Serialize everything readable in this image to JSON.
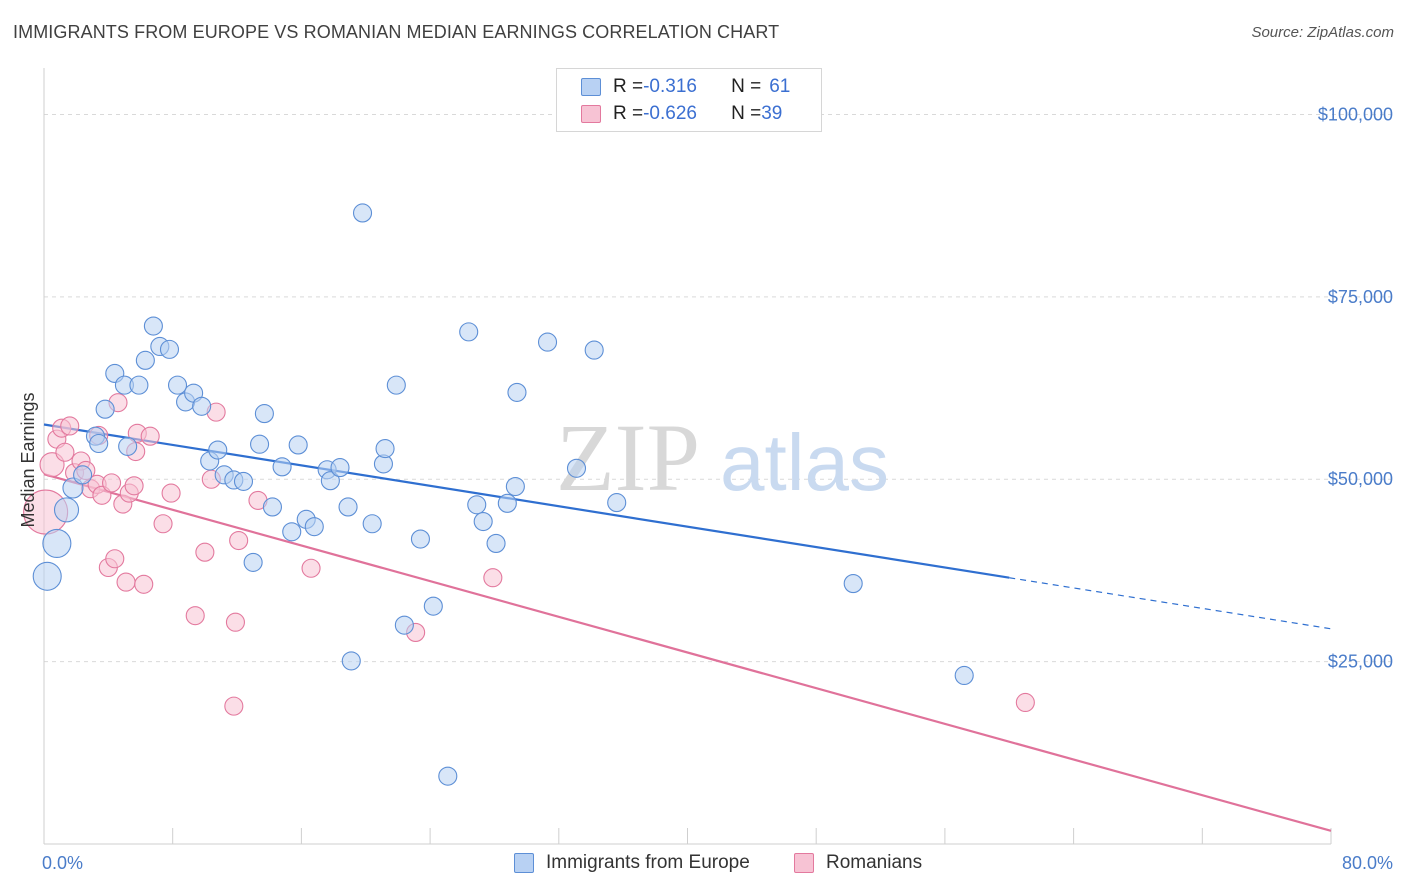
{
  "title": "IMMIGRANTS FROM EUROPE VS ROMANIAN MEDIAN EARNINGS CORRELATION CHART",
  "source": "Source: ZipAtlas.com",
  "watermark": {
    "zip": "ZIP",
    "atlas": "atlas"
  },
  "legend": {
    "rows": [
      {
        "r_label": "R = ",
        "r_value": "-0.316",
        "n_label": "N = ",
        "n_value": "61"
      },
      {
        "r_label": "R = ",
        "r_value": "-0.626",
        "n_label": "N = ",
        "n_value": "39"
      }
    ]
  },
  "bottom_legend": [
    "Immigrants from Europe",
    "Romanians"
  ],
  "colors": {
    "blue_fill": "#b8d1f3",
    "blue_stroke": "#5d8fd6",
    "blue_line": "#2f6fd0",
    "pink_fill": "#f7c3d4",
    "pink_stroke": "#e3799e",
    "pink_line": "#e0729a",
    "grid": "#d9d9d9",
    "axis_text": "#4a7cc9"
  },
  "chart_data": {
    "type": "scatter",
    "xlabel": "",
    "ylabel": "Median Earnings",
    "xlim": [
      0,
      80
    ],
    "ylim": [
      0,
      105000
    ],
    "x_tick_labels": [
      "0.0%",
      "80.0%"
    ],
    "y_ticks": [
      25000,
      50000,
      75000,
      100000
    ],
    "y_tick_labels": [
      "$25,000",
      "$50,000",
      "$75,000",
      "$100,000"
    ],
    "grid": true,
    "series": [
      {
        "name": "Immigrants from Europe",
        "r": -0.316,
        "n": 61,
        "trend": {
          "x0": 0,
          "y0": 57500,
          "x1": 60,
          "y1": 36500,
          "dashed_to_x": 80,
          "dashed_to_y": 29500
        },
        "points": [
          [
            0.2,
            36700,
            14
          ],
          [
            0.8,
            41200,
            14
          ],
          [
            1.4,
            45800,
            12
          ],
          [
            1.8,
            48800,
            10
          ],
          [
            2.4,
            50600,
            9
          ],
          [
            3.2,
            55900,
            9
          ],
          [
            3.4,
            54900,
            9
          ],
          [
            3.8,
            59600,
            9
          ],
          [
            4.4,
            64500,
            9
          ],
          [
            5.0,
            62900,
            9
          ],
          [
            5.2,
            54500,
            9
          ],
          [
            5.9,
            62900,
            9
          ],
          [
            6.3,
            66300,
            9
          ],
          [
            6.8,
            71000,
            9
          ],
          [
            7.2,
            68200,
            9
          ],
          [
            7.8,
            67800,
            9
          ],
          [
            8.3,
            62900,
            9
          ],
          [
            8.8,
            60600,
            9
          ],
          [
            9.3,
            61800,
            9
          ],
          [
            9.8,
            60000,
            9
          ],
          [
            10.3,
            52500,
            9
          ],
          [
            10.8,
            54000,
            9
          ],
          [
            11.2,
            50600,
            9
          ],
          [
            11.8,
            49900,
            9
          ],
          [
            12.4,
            49700,
            9
          ],
          [
            13.0,
            38600,
            9
          ],
          [
            13.4,
            54800,
            9
          ],
          [
            13.7,
            59000,
            9
          ],
          [
            14.2,
            46200,
            9
          ],
          [
            14.8,
            51700,
            9
          ],
          [
            15.4,
            42800,
            9
          ],
          [
            15.8,
            54700,
            9
          ],
          [
            16.3,
            44500,
            9
          ],
          [
            16.8,
            43500,
            9
          ],
          [
            17.6,
            51300,
            9
          ],
          [
            17.8,
            49800,
            9
          ],
          [
            18.4,
            51600,
            9
          ],
          [
            18.9,
            46200,
            9
          ],
          [
            19.1,
            25100,
            9
          ],
          [
            19.8,
            86500,
            9
          ],
          [
            20.4,
            43900,
            9
          ],
          [
            21.1,
            52100,
            9
          ],
          [
            21.2,
            54200,
            9
          ],
          [
            21.9,
            62900,
            9
          ],
          [
            22.4,
            30000,
            9
          ],
          [
            23.4,
            41800,
            9
          ],
          [
            24.2,
            32600,
            9
          ],
          [
            25.1,
            9300,
            9
          ],
          [
            26.4,
            70200,
            9
          ],
          [
            26.9,
            46500,
            9
          ],
          [
            27.3,
            44200,
            9
          ],
          [
            28.1,
            41200,
            9
          ],
          [
            28.8,
            46700,
            9
          ],
          [
            29.3,
            49000,
            9
          ],
          [
            29.4,
            61900,
            9
          ],
          [
            31.3,
            68800,
            9
          ],
          [
            33.1,
            51500,
            9
          ],
          [
            34.2,
            67700,
            9
          ],
          [
            35.6,
            46800,
            9
          ],
          [
            50.3,
            35700,
            9
          ],
          [
            57.2,
            23100,
            9
          ]
        ]
      },
      {
        "name": "Romanians",
        "r": -0.626,
        "n": 39,
        "trend": {
          "x0": 0,
          "y0": 50700,
          "x1": 80,
          "y1": 1800
        },
        "points": [
          [
            0.1,
            45500,
            22
          ],
          [
            0.5,
            52000,
            12
          ],
          [
            0.8,
            55500,
            9
          ],
          [
            1.1,
            57000,
            9
          ],
          [
            1.3,
            53700,
            9
          ],
          [
            1.6,
            57300,
            9
          ],
          [
            1.9,
            50900,
            9
          ],
          [
            2.3,
            52500,
            9
          ],
          [
            2.6,
            51200,
            9
          ],
          [
            2.9,
            48700,
            9
          ],
          [
            3.3,
            49300,
            9
          ],
          [
            3.4,
            56000,
            9
          ],
          [
            3.6,
            47800,
            9
          ],
          [
            4.0,
            37900,
            9
          ],
          [
            4.2,
            49500,
            9
          ],
          [
            4.4,
            39100,
            9
          ],
          [
            4.6,
            60500,
            9
          ],
          [
            4.9,
            46600,
            9
          ],
          [
            5.1,
            35900,
            9
          ],
          [
            5.3,
            48100,
            9
          ],
          [
            5.6,
            49100,
            9
          ],
          [
            5.7,
            53800,
            9
          ],
          [
            5.8,
            56300,
            9
          ],
          [
            6.2,
            35600,
            9
          ],
          [
            6.6,
            55900,
            9
          ],
          [
            7.4,
            43900,
            9
          ],
          [
            7.9,
            48100,
            9
          ],
          [
            9.4,
            31300,
            9
          ],
          [
            10.0,
            40000,
            9
          ],
          [
            10.4,
            50000,
            9
          ],
          [
            10.7,
            59200,
            9
          ],
          [
            11.8,
            18900,
            9
          ],
          [
            11.9,
            30400,
            9
          ],
          [
            12.1,
            41600,
            9
          ],
          [
            13.3,
            47100,
            9
          ],
          [
            16.6,
            37800,
            9
          ],
          [
            23.1,
            29000,
            9
          ],
          [
            27.9,
            36500,
            9
          ],
          [
            61.0,
            19400,
            9
          ]
        ]
      }
    ]
  }
}
